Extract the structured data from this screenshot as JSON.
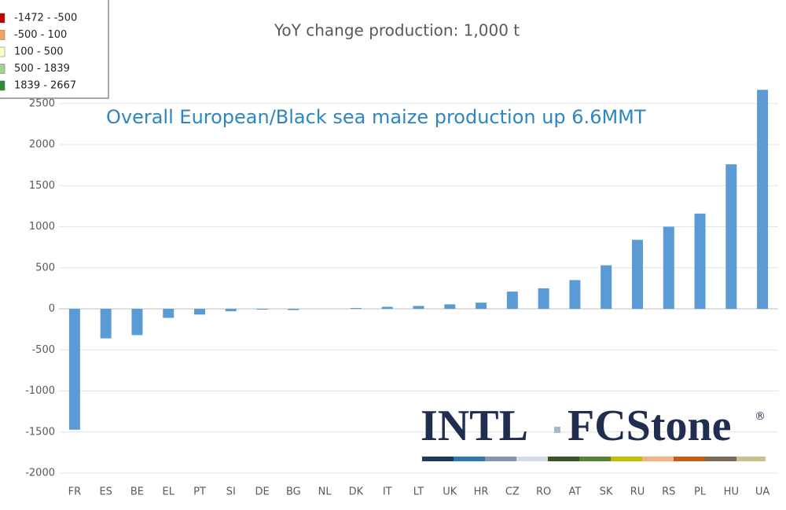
{
  "chart_data": {
    "type": "bar",
    "title": "YoY change production: 1,000 t",
    "annotation": "Overall European/Black sea maize production up 6.6MMT",
    "categories": [
      "FR",
      "ES",
      "BE",
      "EL",
      "PT",
      "SI",
      "DE",
      "BG",
      "NL",
      "DK",
      "IT",
      "LT",
      "UK",
      "HR",
      "CZ",
      "RO",
      "AT",
      "SK",
      "RU",
      "RS",
      "PL",
      "HU",
      "UA"
    ],
    "values": [
      -1472,
      -360,
      -320,
      -110,
      -70,
      -30,
      -10,
      -15,
      0,
      10,
      25,
      35,
      55,
      75,
      210,
      250,
      350,
      530,
      840,
      1000,
      1160,
      1760,
      2667
    ],
    "color": "#5b9bd5",
    "ylim": [
      -2000,
      3000
    ],
    "yticks": [
      -2000,
      -1500,
      -1000,
      -500,
      0,
      500,
      1000,
      1500,
      2000,
      2500
    ],
    "grid": true,
    "legend": {
      "position": "upper left",
      "items": [
        {
          "label": "-1472 - -500",
          "color": "#c00000"
        },
        {
          "label": "-500 - 100",
          "color": "#f4a460"
        },
        {
          "label": "100 - 500",
          "color": "#ffffcc"
        },
        {
          "label": "500 - 1839",
          "color": "#a9d18e"
        },
        {
          "label": "1839 - 2667",
          "color": "#2e8b3a"
        }
      ]
    },
    "logo": {
      "left": "INTL",
      "right": "FCStone",
      "mark": "®"
    }
  }
}
